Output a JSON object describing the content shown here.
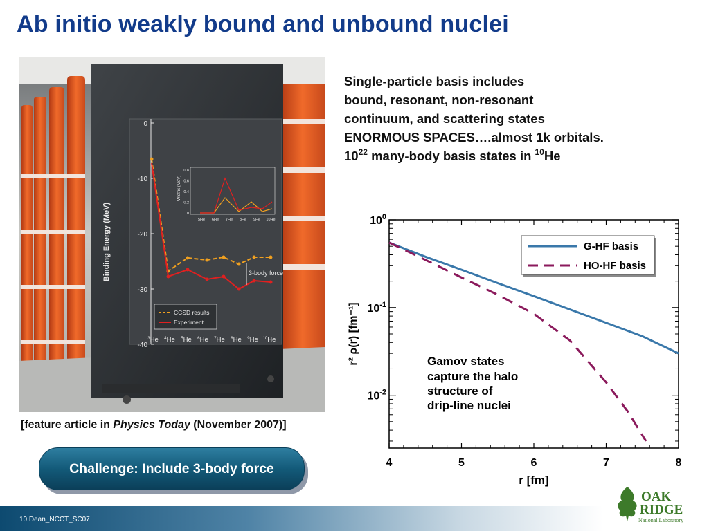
{
  "slide": {
    "title": "Ab initio weakly bound and unbound nuclei",
    "caption_prefix": "[feature article in ",
    "caption_journal": "Physics Today",
    "caption_suffix": " (November 2007)]",
    "description_lines": [
      "Single-particle basis includes",
      "bound, resonant, non-resonant",
      "continuum, and scattering states",
      "ENORMOUS SPACES….almost 1k orbitals."
    ],
    "basis_prefix": "10",
    "basis_exp": "22",
    "basis_middle": " many-body basis states in ",
    "basis_nucleus_mass": "10",
    "basis_nucleus": "He",
    "challenge_label": "Challenge:  Include 3-body force",
    "footer": "10  Dean_NCCT_SC07",
    "logo": {
      "line1": "OAK",
      "line2": "RIDGE",
      "line3": "National Laboratory"
    },
    "colors": {
      "title": "#123b8a",
      "challenge_bg": "#135a79",
      "footer": "#0d4a70",
      "logo": "#3d7a2a"
    }
  },
  "inset_chart": {
    "ylabel": "Binding Energy (MeV)",
    "y_ticks": [
      "0",
      "-10",
      "-20",
      "-30",
      "-40"
    ],
    "x_ticks": [
      {
        "mass": "3",
        "sym": "He"
      },
      {
        "mass": "4",
        "sym": "He"
      },
      {
        "mass": "5",
        "sym": "He"
      },
      {
        "mass": "6",
        "sym": "He"
      },
      {
        "mass": "7",
        "sym": "He"
      },
      {
        "mass": "8",
        "sym": "He"
      },
      {
        "mass": "9",
        "sym": "He"
      },
      {
        "mass": "10",
        "sym": "He"
      }
    ],
    "annotation": "3-body force",
    "legend": [
      "CCSD results",
      "Experiment"
    ],
    "inner_ylabel": "Widths (MeV)",
    "inner_y_ticks": [
      "0.8",
      "0.6",
      "0.4",
      "0.2",
      "0"
    ],
    "inner_x_ticks": [
      {
        "mass": "5",
        "sym": "He"
      },
      {
        "mass": "6",
        "sym": "He"
      },
      {
        "mass": "7",
        "sym": "He"
      },
      {
        "mass": "8",
        "sym": "He"
      },
      {
        "mass": "9",
        "sym": "He"
      },
      {
        "mass": "10",
        "sym": "He"
      }
    ]
  },
  "chart_data": {
    "type": "line",
    "xlabel": "r [fm]",
    "ylabel": "r² ρ(r) [fm⁻¹]",
    "log_y": true,
    "xlim": [
      4,
      8
    ],
    "ylim": [
      0.0025,
      1.0
    ],
    "x_ticks": [
      "4",
      "5",
      "6",
      "7",
      "8"
    ],
    "y_ticks": [
      {
        "base": "10",
        "exp": "0",
        "value": 1.0
      },
      {
        "base": "10",
        "exp": "-1",
        "value": 0.1
      },
      {
        "base": "10",
        "exp": "-2",
        "value": 0.01
      }
    ],
    "legend_position": "top-right",
    "annotation": [
      "Gamov states",
      "capture the halo",
      "structure of",
      "drip-line nuclei"
    ],
    "series": [
      {
        "name": "G-HF basis",
        "color": "#3a78aa",
        "dash": false,
        "x": [
          4.0,
          4.5,
          5.0,
          5.5,
          6.0,
          6.5,
          7.0,
          7.5,
          8.0
        ],
        "y": [
          0.55,
          0.38,
          0.27,
          0.19,
          0.135,
          0.095,
          0.067,
          0.047,
          0.03
        ]
      },
      {
        "name": "HO-HF basis",
        "color": "#8b1a5c",
        "dash": true,
        "x": [
          4.0,
          4.5,
          5.0,
          5.5,
          6.0,
          6.5,
          7.0,
          7.3,
          7.55
        ],
        "y": [
          0.55,
          0.35,
          0.22,
          0.14,
          0.085,
          0.042,
          0.014,
          0.0065,
          0.003
        ]
      }
    ]
  }
}
